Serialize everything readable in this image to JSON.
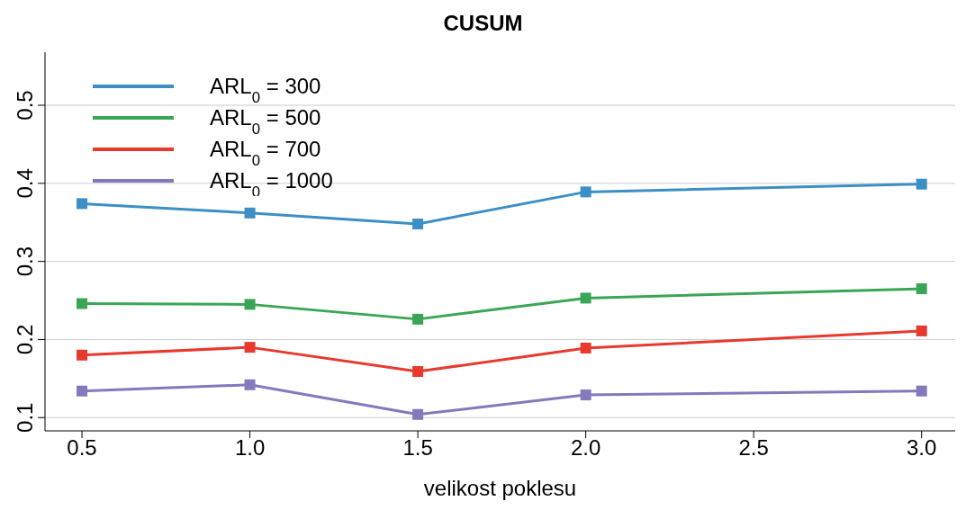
{
  "chart_data": {
    "type": "line",
    "title": "CUSUM",
    "xlabel": "velikost poklesu",
    "x": [
      0.5,
      1.0,
      1.5,
      2.0,
      3.0
    ],
    "series": [
      {
        "name": "ARL$_{0}$ = 300",
        "color": "#3c8fc4",
        "values": [
          0.374,
          0.362,
          0.348,
          0.389,
          0.399
        ]
      },
      {
        "name": "ARL$_{0}$ = 500",
        "color": "#3aa655",
        "values": [
          0.246,
          0.245,
          0.226,
          0.253,
          0.265
        ]
      },
      {
        "name": "ARL$_{0}$ = 700",
        "color": "#e8392e",
        "values": [
          0.18,
          0.19,
          0.159,
          0.189,
          0.211
        ]
      },
      {
        "name": "ARL$_{0}$ = 1000",
        "color": "#8479bb",
        "values": [
          0.134,
          0.142,
          0.104,
          0.129,
          0.134
        ]
      }
    ],
    "xlim": [
      0.39,
      3.1
    ],
    "xticks": [
      {
        "value": 0.5,
        "label": "0.5"
      },
      {
        "value": 1.0,
        "label": "1.0"
      },
      {
        "value": 1.5,
        "label": "1.5"
      },
      {
        "value": 2.0,
        "label": "2.0"
      },
      {
        "value": 2.5,
        "label": "2.5"
      },
      {
        "value": 3.0,
        "label": "3.0"
      }
    ],
    "ylim": [
      0.083,
      0.568
    ],
    "yticks": [
      0.1,
      0.2,
      0.3,
      0.4,
      0.5
    ],
    "grid": "y",
    "legend": "top left",
    "marker": "square",
    "line_style": "solid"
  }
}
